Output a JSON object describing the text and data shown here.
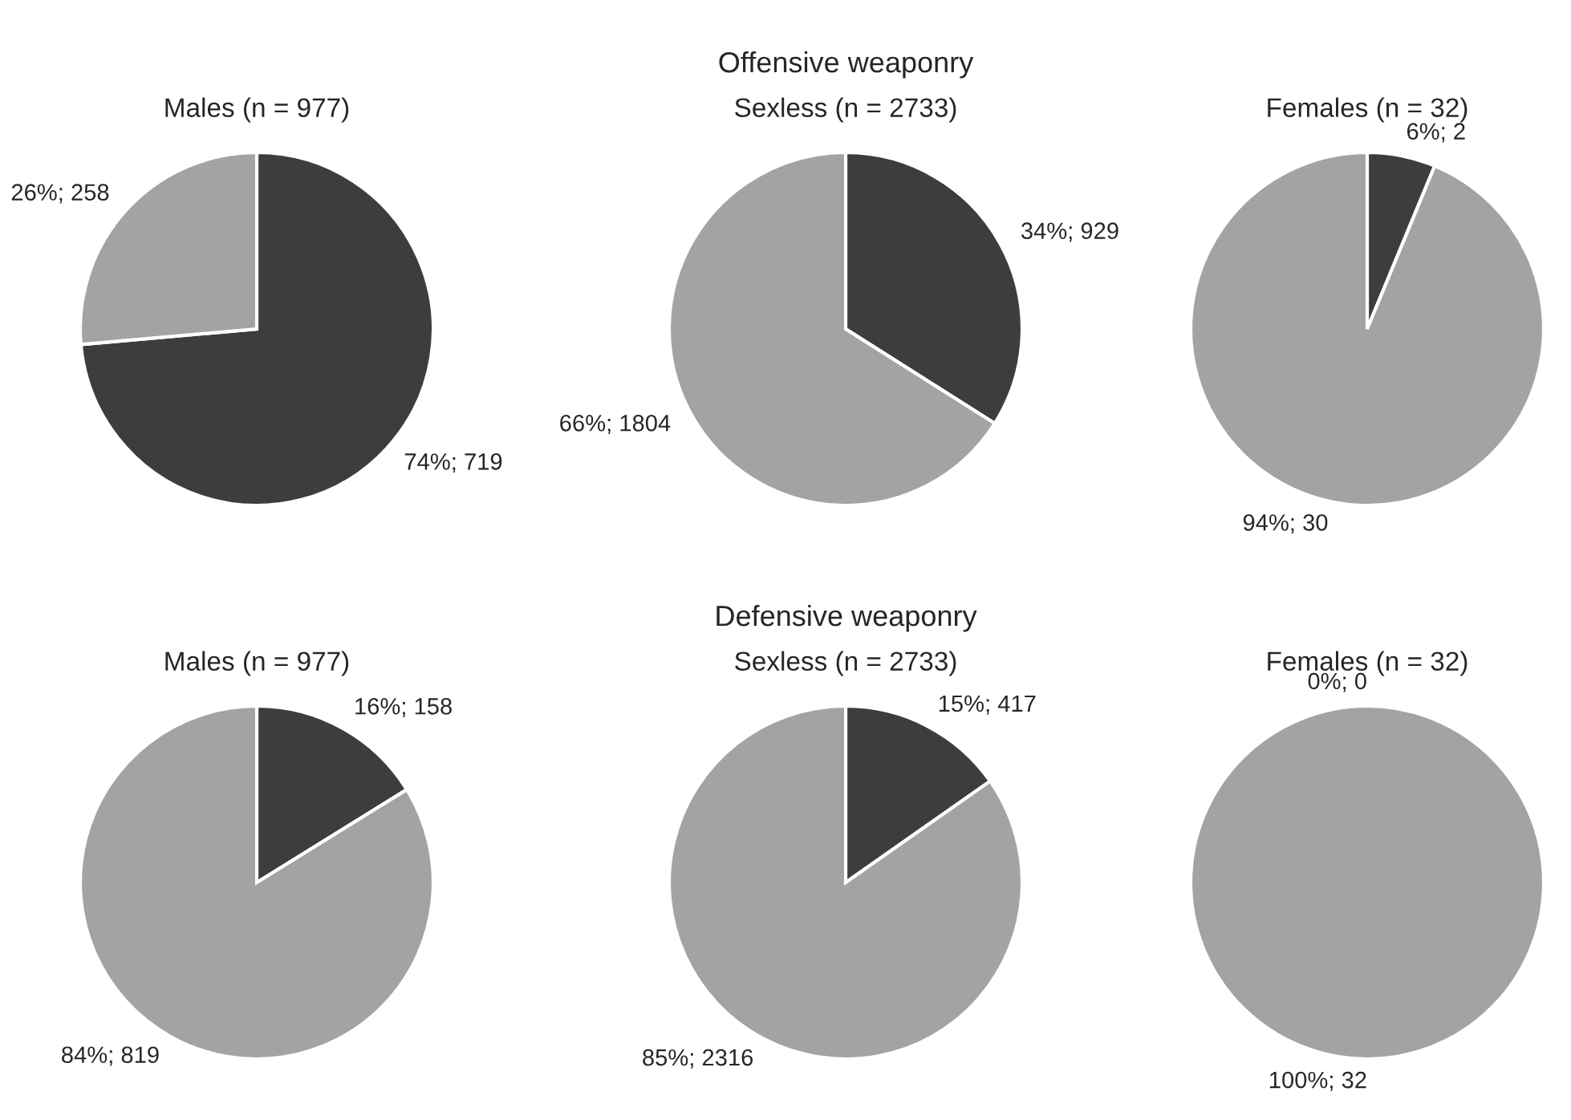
{
  "chart_data": [
    {
      "type": "pie",
      "title": "Males (n = 977)",
      "categories": [
        null,
        null
      ],
      "values": [
        719,
        258
      ],
      "value_labels": [
        "74%; 719",
        "26%; 258"
      ],
      "colors": [
        "#3d3d3d",
        "#a3a3a3"
      ]
    },
    {
      "type": "pie",
      "title": "Sexless (n = 2733)",
      "annotations": [
        "Offensive weaponry"
      ],
      "categories": [
        null,
        null
      ],
      "values": [
        929,
        1804
      ],
      "value_labels": [
        "34%; 929",
        "66%; 1804"
      ],
      "colors": [
        "#3d3d3d",
        "#a3a3a3"
      ]
    },
    {
      "type": "pie",
      "title": "Females (n = 32)",
      "categories": [
        null,
        null
      ],
      "values": [
        2,
        30
      ],
      "value_labels": [
        "6%; 2",
        "94%; 30"
      ],
      "colors": [
        "#3d3d3d",
        "#a3a3a3"
      ]
    },
    {
      "type": "pie",
      "title": "Males (n = 977)",
      "categories": [
        null,
        null
      ],
      "values": [
        158,
        819
      ],
      "value_labels": [
        "16%; 158",
        "84%; 819"
      ],
      "colors": [
        "#3d3d3d",
        "#a3a3a3"
      ]
    },
    {
      "type": "pie",
      "title": "Sexless (n = 2733)",
      "annotations": [
        "Defensive weaponry"
      ],
      "categories": [
        null,
        null
      ],
      "values": [
        417,
        2316
      ],
      "value_labels": [
        "15%; 417",
        "85%; 2316"
      ],
      "colors": [
        "#3d3d3d",
        "#a3a3a3"
      ]
    },
    {
      "type": "pie",
      "title": "Females (n = 32)",
      "categories": [
        null,
        null
      ],
      "values": [
        0,
        32
      ],
      "value_labels": [
        "0%; 0",
        "100%; 32"
      ],
      "colors": [
        "#3d3d3d",
        "#a3a3a3"
      ]
    }
  ]
}
